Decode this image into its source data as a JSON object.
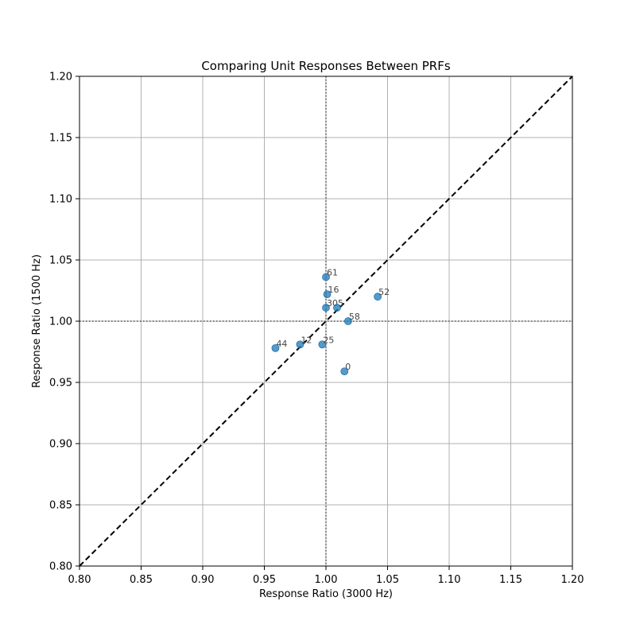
{
  "chart_data": {
    "type": "scatter",
    "title": "Comparing Unit Responses Between PRFs",
    "xlabel": "Response Ratio (3000 Hz)",
    "ylabel": "Response Ratio (1500 Hz)",
    "xlim": [
      0.8,
      1.2
    ],
    "ylim": [
      0.8,
      1.2
    ],
    "xticks": [
      "0.80",
      "0.85",
      "0.90",
      "0.95",
      "1.00",
      "1.05",
      "1.10",
      "1.15",
      "1.20"
    ],
    "yticks": [
      "0.80",
      "0.85",
      "0.90",
      "0.95",
      "1.00",
      "1.05",
      "1.10",
      "1.15",
      "1.20"
    ],
    "xtick_values": [
      0.8,
      0.85,
      0.9,
      0.95,
      1.0,
      1.05,
      1.1,
      1.15,
      1.2
    ],
    "ytick_values": [
      0.8,
      0.85,
      0.9,
      0.95,
      1.0,
      1.05,
      1.1,
      1.15,
      1.2
    ],
    "grid": true,
    "reference_lines": {
      "identity_diagonal": true,
      "vertical_at_x": 1.0,
      "horizontal_at_y": 1.0
    },
    "points": [
      {
        "label": "61",
        "x": 1.0,
        "y": 1.036
      },
      {
        "label": "16",
        "x": 1.001,
        "y": 1.022
      },
      {
        "label": "52",
        "x": 1.042,
        "y": 1.02
      },
      {
        "label": "30",
        "x": 1.0,
        "y": 1.011
      },
      {
        "label": "5",
        "x": 1.009,
        "y": 1.011
      },
      {
        "label": "58",
        "x": 1.018,
        "y": 1.0
      },
      {
        "label": "44",
        "x": 0.959,
        "y": 0.978
      },
      {
        "label": "12",
        "x": 0.979,
        "y": 0.981
      },
      {
        "label": "25",
        "x": 0.997,
        "y": 0.981
      },
      {
        "label": "0",
        "x": 1.015,
        "y": 0.959
      }
    ],
    "colors": {
      "point": "#1f77b4",
      "grid": "#b0b0b0",
      "diagonal": "#000000",
      "reference": "#555555"
    }
  }
}
